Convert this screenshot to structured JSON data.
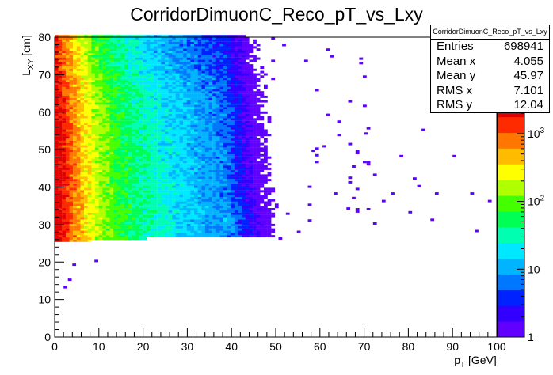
{
  "chart_data": {
    "type": "heatmap",
    "title": "CorridorDimuonC_Reco_pT_vs_Lxy",
    "xlabel": "p_T [GeV]",
    "ylabel": "L_XY [cm]",
    "xlim": [
      0,
      100
    ],
    "ylim": [
      0,
      80
    ],
    "x_ticks": [
      "0",
      "10",
      "20",
      "30",
      "40",
      "50",
      "60",
      "70",
      "80",
      "90",
      "100"
    ],
    "y_ticks": [
      "0",
      "10",
      "20",
      "30",
      "40",
      "50",
      "60",
      "70",
      "80"
    ],
    "z_scale": "log",
    "z_ticks": [
      "1",
      "10",
      "10^2",
      "10^3"
    ],
    "z_range": [
      1,
      3000
    ],
    "palette": [
      "#6000ff",
      "#3300ff",
      "#0022ff",
      "#0077ff",
      "#00b4ff",
      "#00e8ff",
      "#00ffb0",
      "#00ff55",
      "#44ff00",
      "#b0ff00",
      "#ffff00",
      "#ffbb00",
      "#ff7700",
      "#ff2a00",
      "#e00000"
    ],
    "description_of_density": {
      "x_bin_width": 0.83,
      "y_bin_width": 0.6,
      "inner_edge_at_x0": 25,
      "inner_edge_at_x30": 26.5,
      "peak_near": [
        0.5,
        35
      ]
    },
    "stats": {
      "title": "CorridorDimuonC_Reco_pT_vs_Lxy",
      "rows": [
        {
          "label": "Entries",
          "value": "698941"
        },
        {
          "label": "Mean x",
          "value": "4.055"
        },
        {
          "label": "Mean y",
          "value": "45.97"
        },
        {
          "label": "RMS x",
          "value": "7.101"
        },
        {
          "label": "RMS y",
          "value": "12.04"
        }
      ]
    }
  }
}
